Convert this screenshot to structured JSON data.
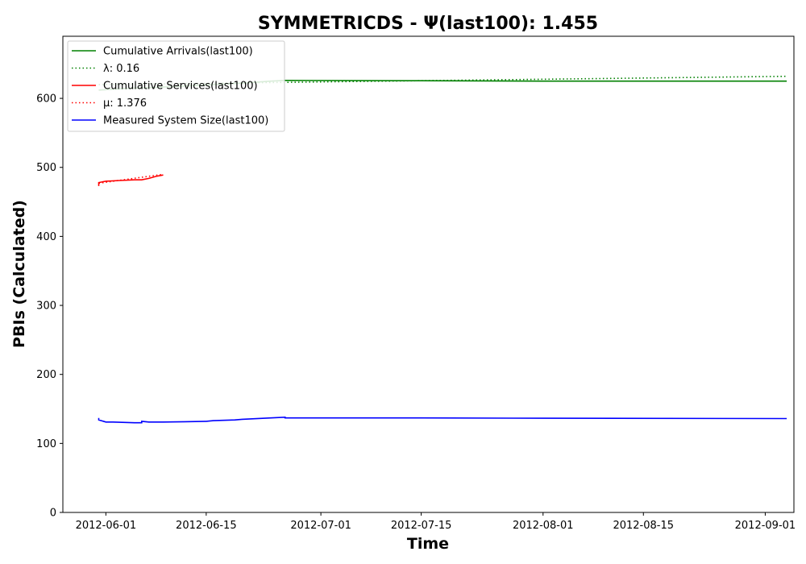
{
  "chart_data": {
    "type": "line",
    "title": "SYMMETRICDS -  Ψ(last100): 1.455",
    "xlabel": "Time",
    "ylabel": "PBIs (Calculated)",
    "xlim": [
      "2012-05-26",
      "2012-09-05"
    ],
    "ylim": [
      0,
      690
    ],
    "x_ticks": [
      "2012-06-01",
      "2012-06-15",
      "2012-07-01",
      "2012-07-15",
      "2012-08-01",
      "2012-08-15",
      "2012-09-01"
    ],
    "y_ticks": [
      0,
      100,
      200,
      300,
      400,
      500,
      600
    ],
    "grid": false,
    "legend_position": "top-left",
    "series": [
      {
        "name": "Cumulative Arrivals(last100)",
        "color": "#008000",
        "style": "solid",
        "points": [
          [
            "2012-05-31",
            612
          ],
          [
            "2012-06-03",
            614
          ],
          [
            "2012-06-08",
            616
          ],
          [
            "2012-06-12",
            618
          ],
          [
            "2012-06-16",
            620
          ],
          [
            "2012-06-20",
            622
          ],
          [
            "2012-06-24",
            625
          ],
          [
            "2012-06-26",
            626
          ],
          [
            "2012-07-15",
            625.5
          ],
          [
            "2012-08-01",
            625
          ],
          [
            "2012-09-04",
            625
          ]
        ]
      },
      {
        "name": "λ: 0.16",
        "color": "#008000",
        "style": "dotted",
        "points": [
          [
            "2012-05-31",
            620
          ],
          [
            "2012-09-04",
            632
          ]
        ]
      },
      {
        "name": "Cumulative Services(last100)",
        "color": "#ff0000",
        "style": "solid",
        "points": [
          [
            "2012-05-31",
            473
          ],
          [
            "2012-05-31",
            478
          ],
          [
            "2012-06-01",
            480
          ],
          [
            "2012-06-03",
            481
          ],
          [
            "2012-06-05",
            482
          ],
          [
            "2012-06-06",
            482
          ],
          [
            "2012-06-07",
            484
          ],
          [
            "2012-06-08",
            487
          ],
          [
            "2012-06-09",
            489
          ]
        ]
      },
      {
        "name": "μ: 1.376",
        "color": "#ff0000",
        "style": "dotted",
        "points": [
          [
            "2012-05-31",
            477
          ],
          [
            "2012-06-09",
            490
          ]
        ]
      },
      {
        "name": "Measured System Size(last100)",
        "color": "#0000ff",
        "style": "solid",
        "points": [
          [
            "2012-05-31",
            137
          ],
          [
            "2012-05-31",
            134
          ],
          [
            "2012-06-01",
            131
          ],
          [
            "2012-06-02",
            131
          ],
          [
            "2012-06-05",
            130
          ],
          [
            "2012-06-06",
            130
          ],
          [
            "2012-06-06",
            132
          ],
          [
            "2012-06-07",
            131
          ],
          [
            "2012-06-08",
            131
          ],
          [
            "2012-06-09",
            131
          ],
          [
            "2012-06-12",
            131.5
          ],
          [
            "2012-06-15",
            132
          ],
          [
            "2012-06-16",
            133
          ],
          [
            "2012-06-19",
            134
          ],
          [
            "2012-06-20",
            135
          ],
          [
            "2012-06-24",
            137
          ],
          [
            "2012-06-26",
            138
          ],
          [
            "2012-06-26",
            137
          ],
          [
            "2012-07-15",
            137
          ],
          [
            "2012-08-01",
            136.5
          ],
          [
            "2012-09-04",
            136
          ]
        ]
      }
    ]
  }
}
